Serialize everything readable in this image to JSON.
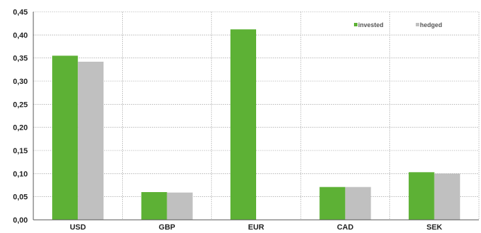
{
  "chart_data": {
    "type": "bar",
    "categories": [
      "USD",
      "GBP",
      "EUR",
      "CAD",
      "SEK"
    ],
    "series": [
      {
        "name": "invested",
        "values": [
          0.355,
          0.06,
          0.412,
          0.071,
          0.103
        ]
      },
      {
        "name": "hedged",
        "values": [
          0.342,
          0.059,
          null,
          0.071,
          0.1
        ]
      }
    ],
    "ylim": [
      0,
      0.45
    ],
    "yticks": [
      "0,00",
      "0,05",
      "0,10",
      "0,15",
      "0,20",
      "0,25",
      "0,30",
      "0,35",
      "0,40",
      "0,45"
    ],
    "grid": true,
    "legend_position": "top-right",
    "colors": {
      "invested": "#5db135",
      "hedged": "#c0c0c0",
      "grid": "#8c8c8c",
      "axis": "#555555"
    }
  }
}
